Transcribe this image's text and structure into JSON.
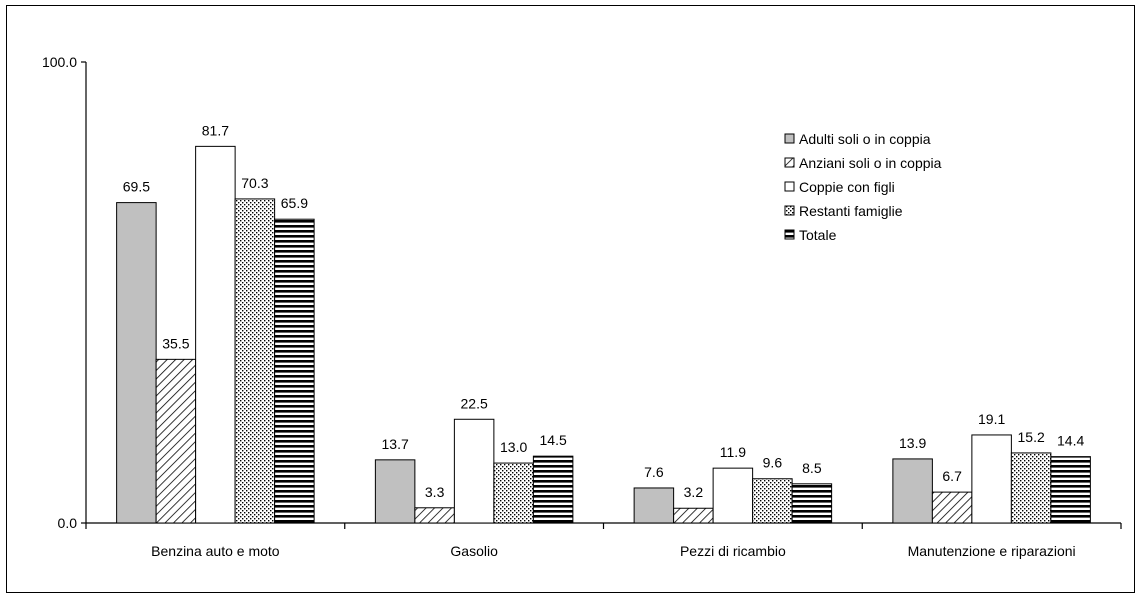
{
  "chart_data": {
    "type": "bar",
    "categories": [
      "Benzina auto e moto",
      "Gasolio",
      "Pezzi di ricambio",
      "Manutenzione e riparazioni"
    ],
    "series": [
      {
        "name": "Adulti soli o in coppia",
        "values": [
          69.5,
          13.7,
          7.6,
          13.9
        ],
        "pattern": "solid-gray"
      },
      {
        "name": "Anziani soli o in coppia",
        "values": [
          35.5,
          3.3,
          3.2,
          6.7
        ],
        "pattern": "diagonal-hatch"
      },
      {
        "name": "Coppie con figli",
        "values": [
          81.7,
          22.5,
          11.9,
          19.1
        ],
        "pattern": "white"
      },
      {
        "name": "Restanti famiglie",
        "values": [
          70.3,
          13.0,
          9.6,
          15.2
        ],
        "pattern": "dotted"
      },
      {
        "name": "Totale",
        "values": [
          65.9,
          14.5,
          8.5,
          14.4
        ],
        "pattern": "horizontal-stripes"
      }
    ],
    "value_labels": [
      [
        "69.5",
        "13.7",
        "7.6",
        "13.9"
      ],
      [
        "35.5",
        "3.3",
        "3.2",
        "6.7"
      ],
      [
        "81.7",
        "22.5",
        "11.9",
        "19.1"
      ],
      [
        "70.3",
        "13.0",
        "9.6",
        "15.2"
      ],
      [
        "65.9",
        "14.5",
        "8.5",
        "14.4"
      ]
    ],
    "ylim": [
      0,
      100
    ],
    "y_ticks": [
      "0.0",
      "100.0"
    ],
    "title": "",
    "xlabel": "",
    "ylabel": "",
    "grid": false,
    "legend_position": "top-right",
    "colors": {
      "gray": "#c0c0c0",
      "black": "#000000",
      "white": "#ffffff"
    }
  }
}
